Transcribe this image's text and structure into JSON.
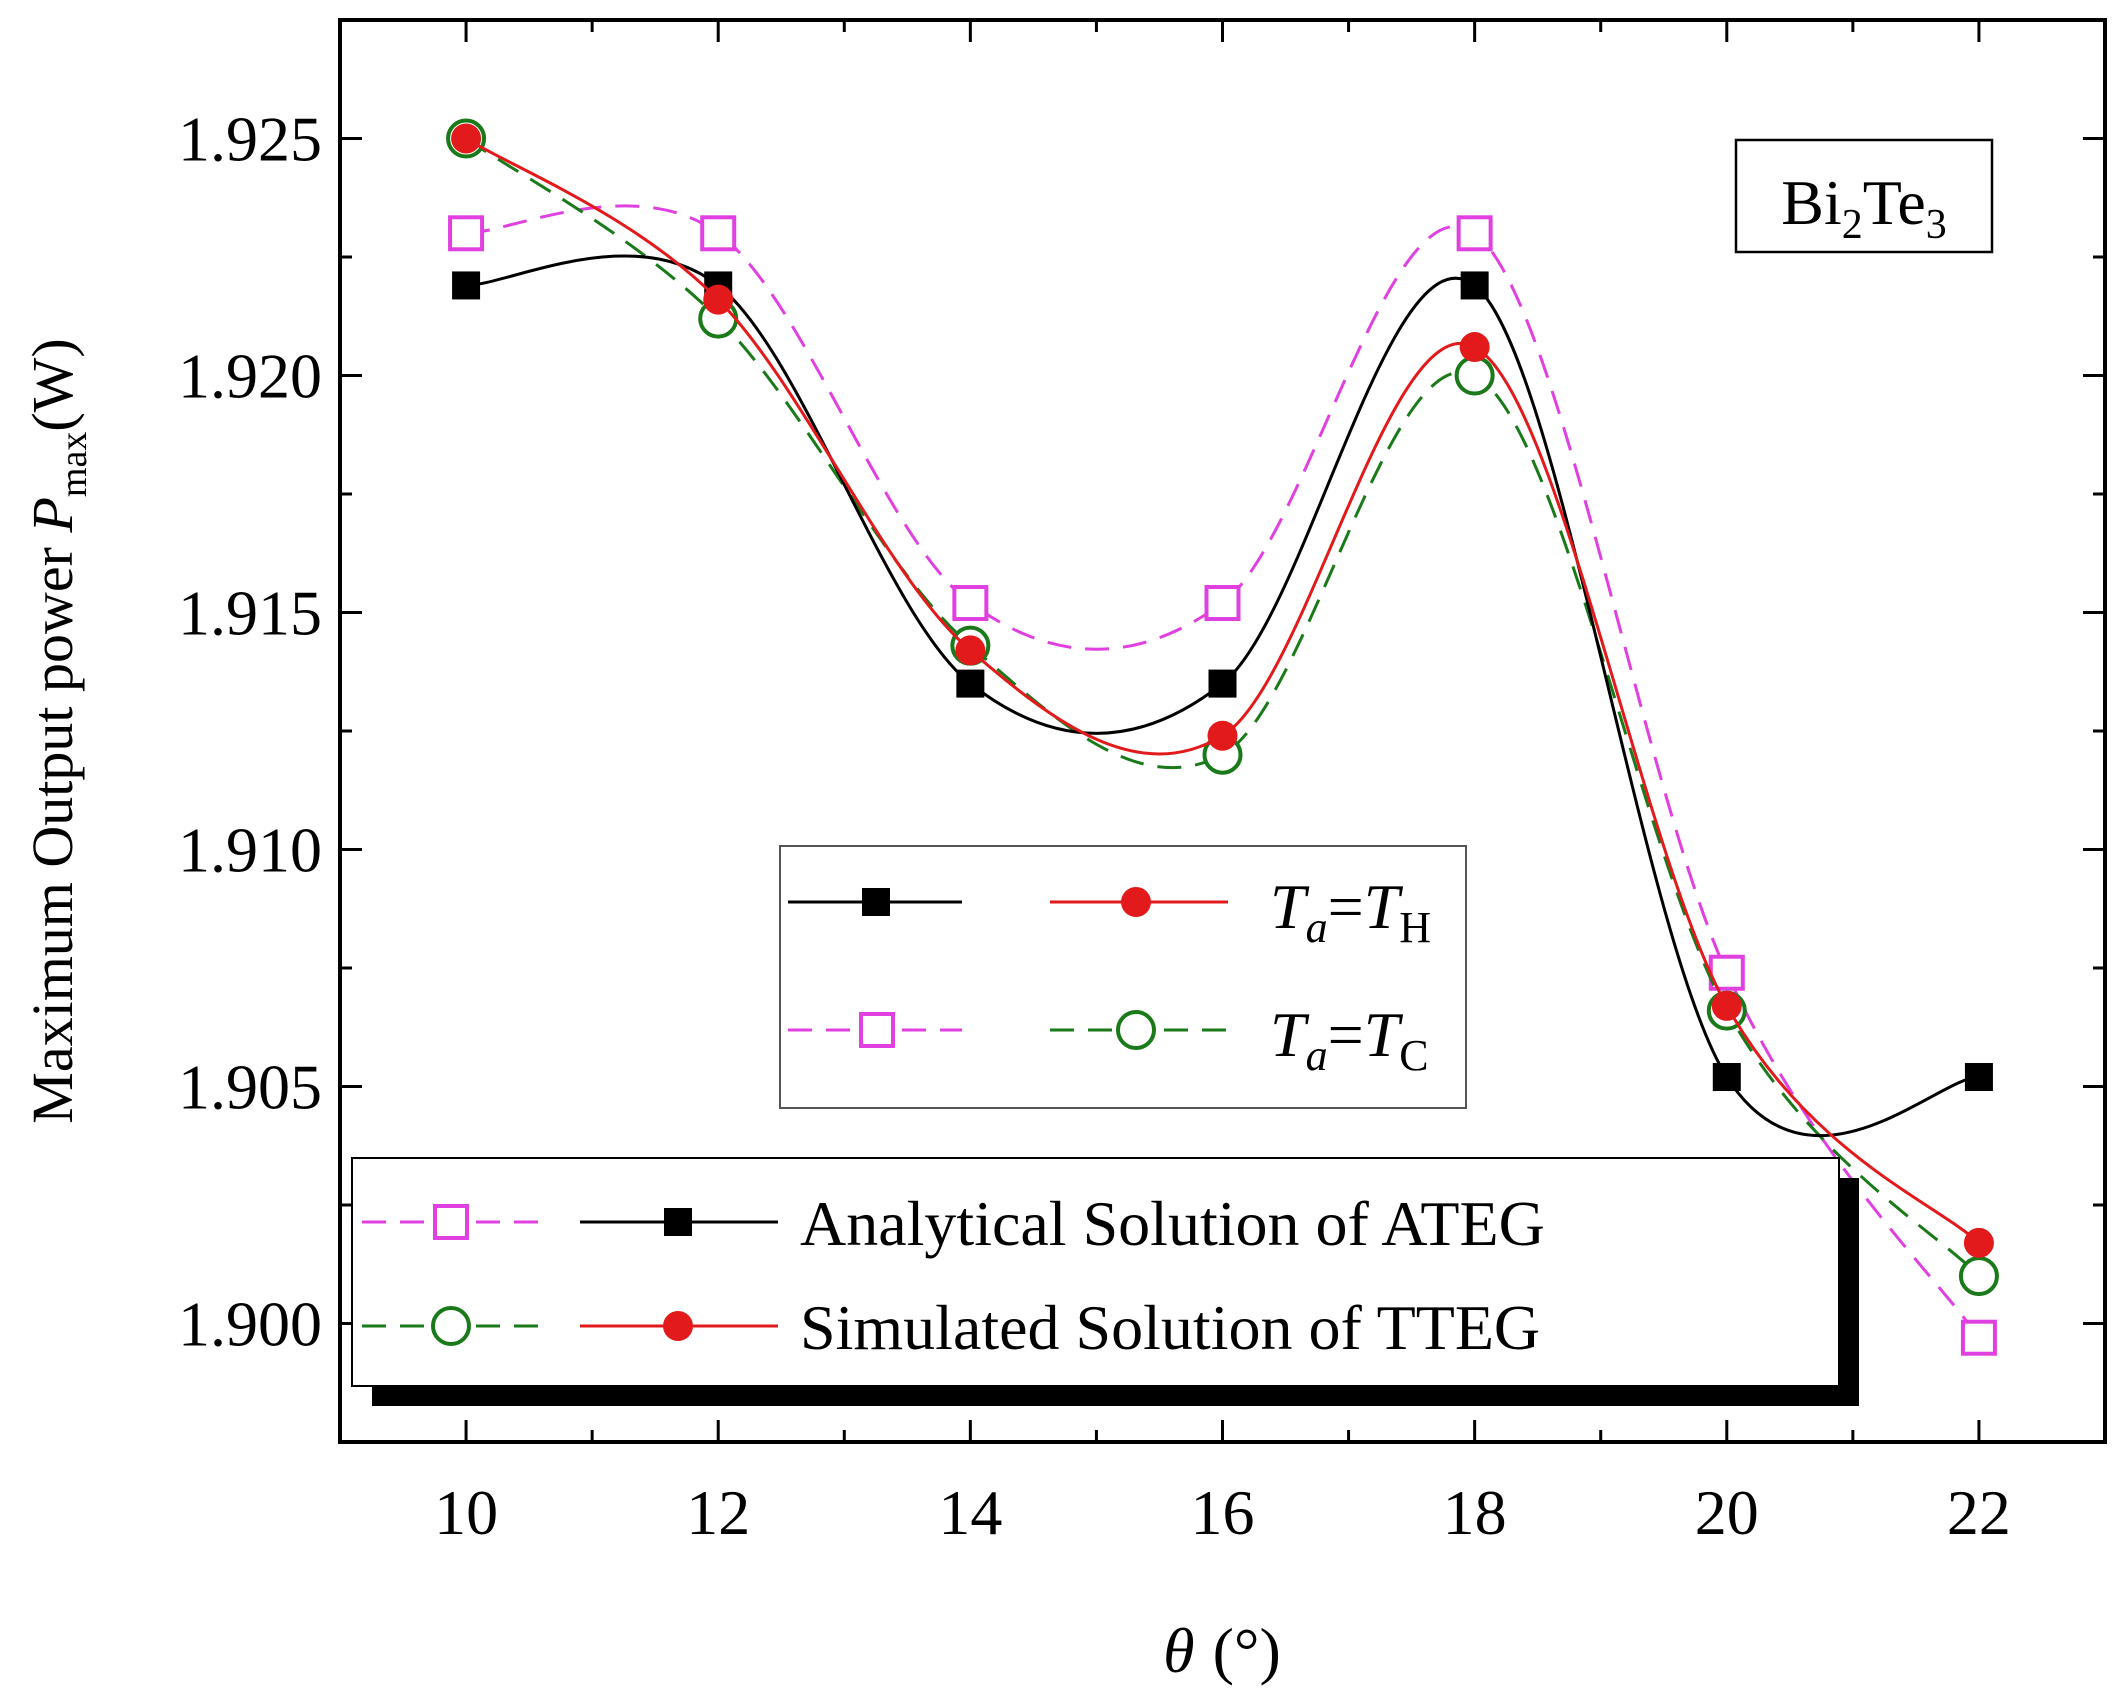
{
  "chart_data": {
    "type": "line",
    "x": [
      10,
      12,
      14,
      16,
      18,
      20,
      22
    ],
    "xlim": [
      9,
      23
    ],
    "ylim": [
      1.8975,
      1.9275
    ],
    "xticks": [
      "10",
      "12",
      "14",
      "16",
      "18",
      "20",
      "22"
    ],
    "yticks": [
      "1.900",
      "1.905",
      "1.910",
      "1.915",
      "1.920",
      "1.925"
    ],
    "xlabel": {
      "symbol": "θ",
      "unit": "(°)"
    },
    "ylabel": {
      "main": "Maximum Output power ",
      "symbol": "P",
      "sub": "max",
      "unit": "(W)"
    },
    "material": {
      "a": "Bi",
      "sub1": "2",
      "b": "Te",
      "sub2": "3"
    },
    "series": [
      {
        "name": "Analytical Solution of ATEG, Ta=TH",
        "color": "#000000",
        "dash": "solid",
        "marker": "filled-square",
        "values": [
          1.9219,
          1.9219,
          1.9135,
          1.9135,
          1.9219,
          1.9052,
          1.9052
        ]
      },
      {
        "name": "Simulated Solution of TTEG, Ta=TH",
        "color": "#e31a1c",
        "dash": "solid",
        "marker": "filled-circle",
        "values": [
          1.925,
          1.9216,
          1.9142,
          1.9124,
          1.9206,
          1.9067,
          1.9017
        ]
      },
      {
        "name": "Analytical Solution of ATEG, Ta=TC",
        "color": "#e040e0",
        "dash": "dashed",
        "marker": "open-square",
        "values": [
          1.923,
          1.923,
          1.9152,
          1.9152,
          1.923,
          1.9074,
          1.8997
        ]
      },
      {
        "name": "Simulated Solution of TTEG, Ta=TC",
        "color": "#1a7a1a",
        "dash": "dashed",
        "marker": "open-circle",
        "values": [
          1.925,
          1.9212,
          1.9143,
          1.912,
          1.92,
          1.9066,
          1.901
        ]
      }
    ],
    "legend_condition": {
      "row1": {
        "t": "T",
        "a": "a",
        "eq": "=",
        "sub": "H"
      },
      "row2": {
        "t": "T",
        "a": "a",
        "eq": "=",
        "sub": "C"
      }
    },
    "legend_method": {
      "row1": "Analytical Solution of ATEG",
      "row2": "Simulated Solution of TTEG"
    }
  }
}
